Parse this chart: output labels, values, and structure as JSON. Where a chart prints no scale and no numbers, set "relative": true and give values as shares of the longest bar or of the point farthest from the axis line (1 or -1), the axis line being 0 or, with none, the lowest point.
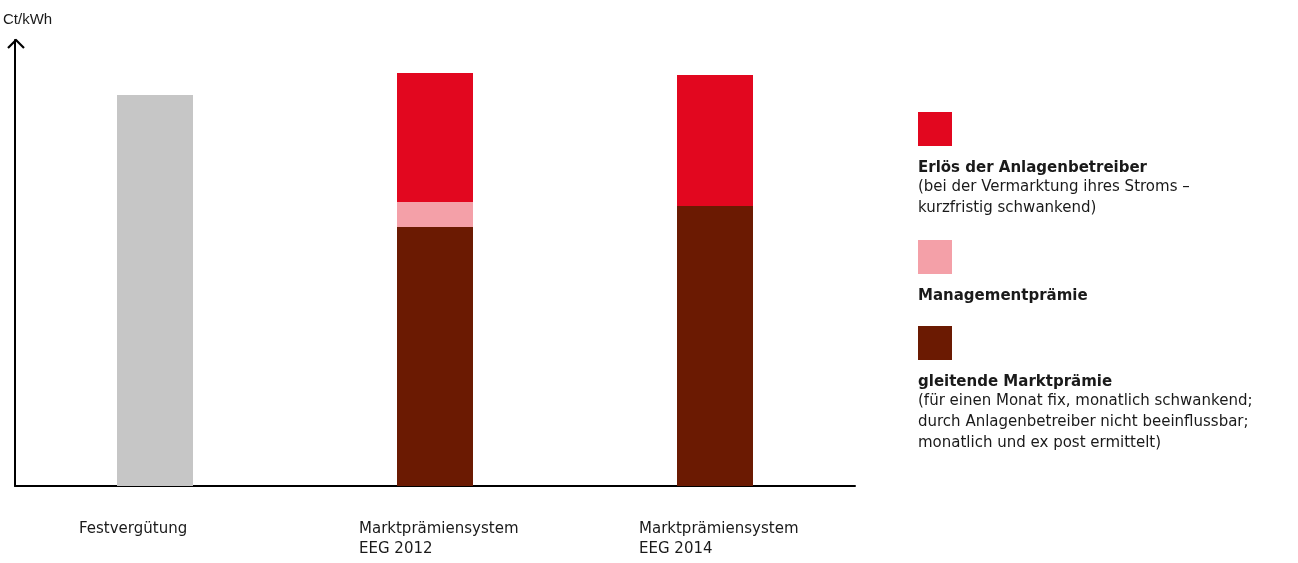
{
  "chart_data": {
    "type": "bar",
    "relative": true,
    "stacked": true,
    "ylabel": "Ct/kWh",
    "categories": [
      "Festvergütung",
      "Marktprämiensystem\nEEG 2012",
      "Marktprämiensystem\nEEG 2014"
    ],
    "series": [
      {
        "color": "#c6c6c6",
        "values": [
          0.947,
          null,
          null
        ]
      },
      {
        "name": "gleitende Marktprämie",
        "color": "#6b1a02",
        "values": [
          null,
          0.627,
          0.678
        ]
      },
      {
        "name": "Managementprämie",
        "color": "#f4a0a8",
        "values": [
          null,
          0.061,
          null
        ]
      },
      {
        "name": "Erlös der Anlagenbetreiber",
        "color": "#e2071f",
        "values": [
          null,
          0.312,
          0.317
        ]
      }
    ],
    "legend": "right",
    "annotations": [
      "(bei der Vermarktung ihres Stroms –\nkurzfristig schwankend)",
      "(für einen Monat fix, monatlich schwankend;\ndurch Anlagenbetreiber nicht beeinflussbar;\nmonatlich und ex post ermittelt)"
    ]
  }
}
